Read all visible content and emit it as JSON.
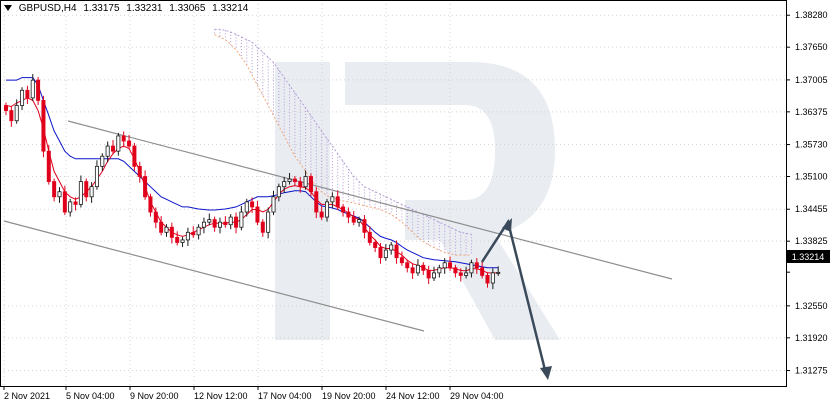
{
  "header": {
    "symbol": "GBPUSD,H4",
    "open": "1.33175",
    "high": "1.33231",
    "low": "1.33065",
    "close": "1.33214"
  },
  "current_price": "1.33214",
  "colors": {
    "bull": "#1b1b1b",
    "bear": "#e0001b",
    "tenkan": "#e0001b",
    "kijun": "#0a14c8",
    "senkou_a": "#f0a57a",
    "senkou_b": "#b39bd6",
    "channel": "#8e8e8e",
    "forecast": "#3b4a5a",
    "watermark": "#e9edf2",
    "grid": "#d3d3d3"
  },
  "chart_data": {
    "type": "candlestick",
    "title": "GBPUSD,H4",
    "y_ticks": [
      "1.38280",
      "1.37650",
      "1.37005",
      "1.36375",
      "1.35730",
      "1.35100",
      "1.34455",
      "1.33825",
      "1.33214",
      "1.32550",
      "1.31920",
      "1.31275"
    ],
    "x_ticks": [
      "2 Nov 2021",
      "5 Nov 04:00",
      "9 Nov 20:00",
      "12 Nov 12:00",
      "17 Nov 04:00",
      "19 Nov 20:00",
      "24 Nov 12:00",
      "29 Nov 04:00"
    ],
    "ylim": [
      1.3097,
      1.3858
    ],
    "grid": true,
    "close": [
      1.364,
      1.362,
      1.365,
      1.368,
      1.3665,
      1.37,
      1.366,
      1.356,
      1.35,
      1.347,
      1.348,
      1.344,
      1.346,
      1.3455,
      1.35,
      1.347,
      1.349,
      1.353,
      1.355,
      1.357,
      1.356,
      1.359,
      1.358,
      1.357,
      1.353,
      1.351,
      1.347,
      1.344,
      1.342,
      1.34,
      1.341,
      1.339,
      1.338,
      1.3385,
      1.34,
      1.3395,
      1.341,
      1.342,
      1.3425,
      1.341,
      1.342,
      1.3415,
      1.343,
      1.341,
      1.344,
      1.346,
      1.345,
      1.342,
      1.34,
      1.344,
      1.347,
      1.349,
      1.35,
      1.3505,
      1.35,
      1.349,
      1.351,
      1.348,
      1.344,
      1.343,
      1.346,
      1.347,
      1.345,
      1.344,
      1.343,
      1.342,
      1.3425,
      1.34,
      1.338,
      1.337,
      1.335,
      1.3365,
      1.3375,
      1.335,
      1.334,
      1.333,
      1.332,
      1.3335,
      1.3325,
      1.331,
      1.332,
      1.333,
      1.334,
      1.333,
      1.332,
      1.3315,
      1.332,
      1.334,
      1.333,
      1.3315,
      1.33,
      1.332,
      1.3321
    ],
    "tenkan": [
      1.365,
      1.3648,
      1.3655,
      1.366,
      1.3665,
      1.366,
      1.364,
      1.3605,
      1.356,
      1.352,
      1.35,
      1.348,
      1.347,
      1.3465,
      1.347,
      1.348,
      1.349,
      1.3505,
      1.352,
      1.354,
      1.3555,
      1.3565,
      1.357,
      1.3565,
      1.3545,
      1.352,
      1.349,
      1.346,
      1.344,
      1.342,
      1.341,
      1.34,
      1.3395,
      1.3392,
      1.3395,
      1.34,
      1.3405,
      1.341,
      1.3415,
      1.3418,
      1.3418,
      1.3418,
      1.342,
      1.342,
      1.3425,
      1.3435,
      1.3445,
      1.3445,
      1.344,
      1.3445,
      1.346,
      1.3475,
      1.3485,
      1.349,
      1.3492,
      1.349,
      1.3488,
      1.348,
      1.3465,
      1.3455,
      1.3455,
      1.3455,
      1.345,
      1.3445,
      1.3438,
      1.343,
      1.3425,
      1.341,
      1.3395,
      1.3385,
      1.3372,
      1.3368,
      1.3368,
      1.3362,
      1.3355,
      1.3345,
      1.3338,
      1.3335,
      1.333,
      1.3325,
      1.3325,
      1.3328,
      1.333,
      1.333,
      1.3328,
      1.3325,
      1.3324,
      1.3328,
      1.3328,
      1.3325,
      1.332,
      1.332,
      1.332
    ],
    "kijun": [
      1.37,
      1.37,
      1.37,
      1.3705,
      1.3705,
      1.3705,
      1.369,
      1.366,
      1.363,
      1.36,
      1.358,
      1.356,
      1.355,
      1.3545,
      1.3545,
      1.3545,
      1.3545,
      1.3545,
      1.3545,
      1.3545,
      1.3545,
      1.3545,
      1.354,
      1.353,
      1.352,
      1.351,
      1.35,
      1.349,
      1.348,
      1.347,
      1.3465,
      1.346,
      1.3455,
      1.345,
      1.345,
      1.3448,
      1.3446,
      1.3445,
      1.3444,
      1.3444,
      1.3445,
      1.3446,
      1.3448,
      1.345,
      1.3455,
      1.346,
      1.3465,
      1.347,
      1.347,
      1.347,
      1.3472,
      1.3475,
      1.3478,
      1.348,
      1.3482,
      1.3482,
      1.348,
      1.347,
      1.346,
      1.3452,
      1.345,
      1.3448,
      1.3445,
      1.344,
      1.3436,
      1.3432,
      1.3428,
      1.342,
      1.341,
      1.34,
      1.3392,
      1.3388,
      1.3385,
      1.338,
      1.3372,
      1.3365,
      1.336,
      1.3355,
      1.335,
      1.3348,
      1.3346,
      1.3345,
      1.3344,
      1.3343,
      1.3342,
      1.334,
      1.3338,
      1.3336,
      1.3334,
      1.3332,
      1.333,
      1.333,
      1.333
    ],
    "senkou_a": [
      1.379,
      1.3785,
      1.378,
      1.377,
      1.376,
      1.3745,
      1.373,
      1.371,
      1.369,
      1.367,
      1.365,
      1.363,
      1.361,
      1.359,
      1.357,
      1.355,
      1.3535,
      1.352,
      1.3505,
      1.349,
      1.348,
      1.3472,
      1.3468,
      1.3465,
      1.3462,
      1.346,
      1.3458,
      1.3455,
      1.3452,
      1.345,
      1.3448,
      1.3445,
      1.344,
      1.3435,
      1.3428,
      1.342,
      1.341,
      1.34,
      1.339,
      1.3382,
      1.3375,
      1.337,
      1.3365,
      1.336,
      1.3358,
      1.3355,
      1.3355,
      1.3355,
      1.3355
    ],
    "senkou_b": [
      1.38,
      1.38,
      1.3798,
      1.3795,
      1.379,
      1.3785,
      1.378,
      1.3775,
      1.3765,
      1.3755,
      1.3745,
      1.3735,
      1.372,
      1.3705,
      1.369,
      1.3675,
      1.366,
      1.3645,
      1.363,
      1.3615,
      1.36,
      1.3585,
      1.357,
      1.3555,
      1.354,
      1.3525,
      1.351,
      1.35,
      1.349,
      1.3485,
      1.348,
      1.3475,
      1.347,
      1.3465,
      1.346,
      1.3455,
      1.345,
      1.3445,
      1.344,
      1.3435,
      1.343,
      1.3425,
      1.342,
      1.3415,
      1.341,
      1.3405,
      1.34,
      1.3398,
      1.3396
    ]
  }
}
